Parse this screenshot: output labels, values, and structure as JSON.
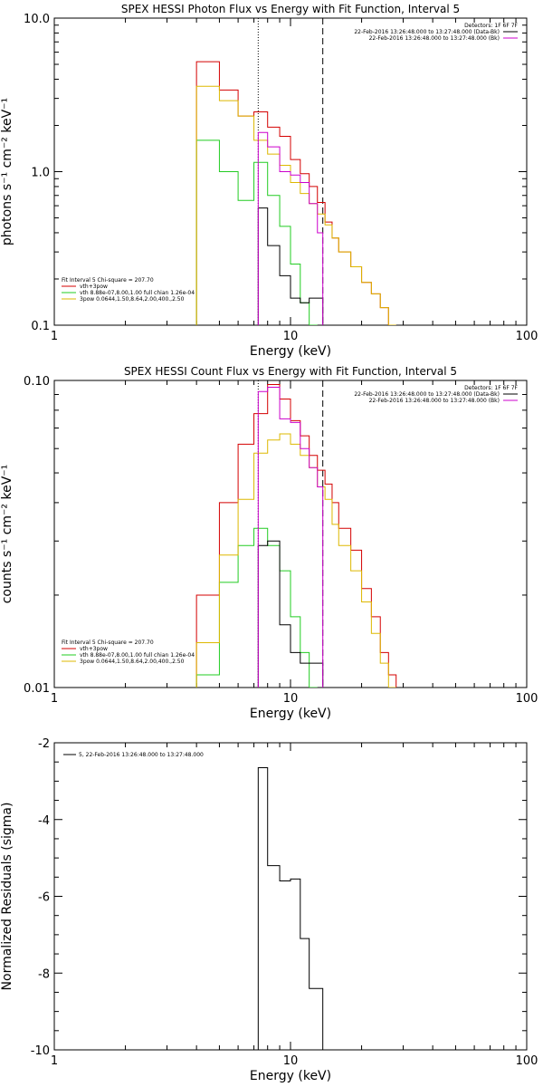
{
  "colors": {
    "total": "#d40000",
    "thermal": "#22cc22",
    "powerlaw": "#ddb800",
    "data": "#000000",
    "bkg": "#cc00cc"
  },
  "chart_data": [
    {
      "type": "line",
      "title": "SPEX HESSI Photon Flux vs Energy with Fit Function, Interval 5",
      "xlabel": "Energy (keV)",
      "ylabel": "photons s⁻¹ cm⁻² keV⁻¹",
      "xscale": "log",
      "yscale": "log",
      "xlim": [
        1,
        100
      ],
      "ylim": [
        0.1,
        10
      ],
      "xticks": [
        "1",
        "10",
        "100"
      ],
      "yticks": [
        "0.1",
        "1.0",
        "10.0"
      ],
      "vlines": [
        {
          "x": 7.3,
          "style": "dotted"
        },
        {
          "x": 13.7,
          "style": "dashed"
        }
      ],
      "legend_right": [
        "Detectors: 1F 6F 7F",
        "22-Feb-2016 13:26:48.000 to 13:27:48.000 (Data-Bk)",
        "22-Feb-2016 13:26:48.000 to 13:27:48.000 (Bk)"
      ],
      "legend_left": [
        "Fit Interval  5    Chi-square = 207.70",
        "vth+3pow",
        "vth 8.88e-07,8.00,1.00  full chian 1.26e-04",
        "3pow 0.0644,1.50,8.64,2.00,400.,2.50"
      ],
      "series": [
        {
          "name": "vth+3pow",
          "color_key": "total",
          "edges": [
            4,
            5,
            6,
            7,
            8,
            9,
            10,
            11,
            12,
            13,
            14,
            15,
            16,
            18,
            20,
            22,
            24,
            26,
            28
          ],
          "values": [
            5.2,
            3.4,
            2.3,
            2.45,
            1.95,
            1.7,
            1.2,
            0.97,
            0.8,
            0.63,
            0.47,
            0.37,
            0.3,
            0.24,
            0.19,
            0.16,
            0.13,
            0.1
          ]
        },
        {
          "name": "vth 8.88e-07,8.00,1.00  full chian 1.26e-04",
          "color_key": "thermal",
          "edges": [
            4,
            5,
            6,
            7,
            8,
            9,
            10,
            11,
            12,
            13
          ],
          "values": [
            1.6,
            1.0,
            0.65,
            1.15,
            0.7,
            0.44,
            0.25,
            0.14,
            0.1
          ]
        },
        {
          "name": "3pow 0.0644,1.50,8.64,2.00,400.,2.50",
          "color_key": "powerlaw",
          "edges": [
            4,
            5,
            6,
            7,
            8,
            9,
            10,
            11,
            12,
            13,
            14,
            15,
            16,
            18,
            20,
            22,
            24,
            26,
            28
          ],
          "values": [
            3.6,
            2.9,
            2.3,
            1.6,
            1.3,
            1.1,
            0.85,
            0.72,
            0.62,
            0.53,
            0.45,
            0.37,
            0.3,
            0.24,
            0.19,
            0.16,
            0.13,
            0.1
          ]
        },
        {
          "name": "22-Feb-2016 13:26:48.000 to 13:27:48.000 (Data-Bk)",
          "color_key": "data",
          "edges": [
            7.3,
            8,
            9,
            10,
            11,
            12,
            13.7
          ],
          "values": [
            0.58,
            0.33,
            0.21,
            0.15,
            0.14,
            0.15
          ]
        },
        {
          "name": "22-Feb-2016 13:26:48.000 to 13:27:48.000 (Bk)",
          "color_key": "bkg",
          "edges": [
            7.3,
            8,
            9,
            10,
            11,
            12,
            13,
            13.7
          ],
          "values": [
            1.8,
            1.45,
            1.0,
            0.95,
            0.85,
            0.62,
            0.4
          ]
        }
      ]
    },
    {
      "type": "line",
      "title": "SPEX HESSI Count Flux vs Energy with Fit Function, Interval 5",
      "xlabel": "Energy (keV)",
      "ylabel": "counts s⁻¹ cm⁻² keV⁻¹",
      "xscale": "log",
      "yscale": "log",
      "xlim": [
        1,
        100
      ],
      "ylim": [
        0.01,
        0.1
      ],
      "xticks": [
        "1",
        "10",
        "100"
      ],
      "yticks": [
        "0.01",
        "0.10"
      ],
      "vlines": [
        {
          "x": 7.3,
          "style": "dotted"
        },
        {
          "x": 13.7,
          "style": "dashed"
        }
      ],
      "legend_right": [
        "Detectors: 1F 6F 7F",
        "22-Feb-2016 13:26:48.000 to 13:27:48.000 (Data-Bk)",
        "22-Feb-2016 13:26:48.000 to 13:27:48.000 (Bk)"
      ],
      "legend_left": [
        "Fit Interval  5    Chi-square = 207.70",
        "vth+3pow",
        "vth 8.88e-07,8.00,1.00  full chian 1.26e-04",
        "3pow 0.0644,1.50,8.64,2.00,400.,2.50"
      ],
      "series": [
        {
          "name": "vth+3pow",
          "color_key": "total",
          "edges": [
            4,
            5,
            6,
            7,
            8,
            9,
            10,
            11,
            12,
            13,
            14,
            15,
            16,
            18,
            20,
            22,
            24,
            26,
            28
          ],
          "values": [
            0.02,
            0.04,
            0.062,
            0.078,
            0.097,
            0.087,
            0.074,
            0.066,
            0.057,
            0.051,
            0.046,
            0.04,
            0.033,
            0.028,
            0.021,
            0.017,
            0.013,
            0.011
          ]
        },
        {
          "name": "vth 8.88e-07,8.00,1.00  full chian 1.26e-04",
          "color_key": "thermal",
          "edges": [
            4,
            5,
            6,
            7,
            8,
            9,
            10,
            11,
            12,
            13
          ],
          "values": [
            0.011,
            0.022,
            0.029,
            0.033,
            0.029,
            0.024,
            0.017,
            0.013,
            0.01
          ]
        },
        {
          "name": "3pow 0.0644,1.50,8.64,2.00,400.,2.50",
          "color_key": "powerlaw",
          "edges": [
            4,
            5,
            6,
            7,
            8,
            9,
            10,
            11,
            12,
            13,
            14,
            15,
            16,
            18,
            20,
            22,
            24,
            26,
            28
          ],
          "values": [
            0.014,
            0.027,
            0.041,
            0.058,
            0.064,
            0.067,
            0.062,
            0.057,
            0.052,
            0.045,
            0.041,
            0.034,
            0.029,
            0.024,
            0.019,
            0.015,
            0.012,
            0.01
          ]
        },
        {
          "name": "22-Feb-2016 13:26:48.000 to 13:27:48.000 (Data-Bk)",
          "color_key": "data",
          "edges": [
            7.3,
            8,
            9,
            10,
            11,
            12,
            13.7
          ],
          "values": [
            0.029,
            0.03,
            0.016,
            0.013,
            0.012,
            0.012
          ]
        },
        {
          "name": "22-Feb-2016 13:26:48.000 to 13:27:48.000 (Bk)",
          "color_key": "bkg",
          "edges": [
            7.3,
            8,
            9,
            10,
            11,
            12,
            13,
            13.7
          ],
          "values": [
            0.092,
            0.095,
            0.075,
            0.073,
            0.06,
            0.052,
            0.045
          ]
        }
      ]
    },
    {
      "type": "line",
      "title": "",
      "xlabel": "Energy (keV)",
      "ylabel": "Normalized Residuals (sigma)",
      "xscale": "log",
      "yscale": "linear",
      "xlim": [
        1,
        100
      ],
      "ylim": [
        -10,
        -2
      ],
      "xticks": [
        "1",
        "10",
        "100"
      ],
      "yticks": [
        "-10",
        "-8",
        "-6",
        "-4",
        "-2"
      ],
      "legend_left": [
        "5, 22-Feb-2016 13:26:48.000 to 13:27:48.000"
      ],
      "series": [
        {
          "name": "5, 22-Feb-2016 13:26:48.000 to 13:27:48.000",
          "color_key": "data",
          "edges": [
            7.3,
            8,
            9,
            10,
            11,
            12,
            13.7
          ],
          "values": [
            -2.65,
            -5.2,
            -5.6,
            -5.55,
            -7.1,
            -8.4
          ]
        }
      ]
    }
  ]
}
